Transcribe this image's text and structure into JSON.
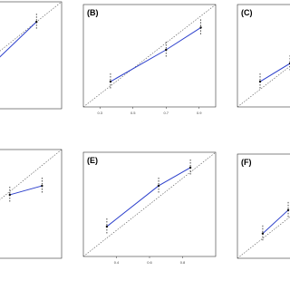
{
  "chart_data": [
    {
      "type": "line",
      "x": [
        0.6,
        0.85
      ],
      "values": [
        0.55,
        0.85
      ],
      "xlim": [
        0.2,
        1.0
      ],
      "ylim": [
        0.2,
        1.0
      ],
      "color": "#2b3fcc"
    },
    {
      "type": "line",
      "title": "(B)",
      "x": [
        0.364,
        0.7,
        0.91
      ],
      "values": [
        0.398,
        0.646,
        0.82
      ],
      "xlim": [
        0.2,
        1.0
      ],
      "ylim": [
        0.2,
        1.0
      ],
      "xticks": [
        0.3,
        0.5,
        0.7,
        0.9
      ],
      "color": "#2b3fcc"
    },
    {
      "type": "line",
      "title": "(C)",
      "x": [
        0.337,
        0.518
      ],
      "values": [
        0.398,
        0.54
      ],
      "xlim": [
        0.2,
        1.0
      ],
      "ylim": [
        0.2,
        1.0
      ],
      "color": "#2b3fcc"
    },
    {
      "type": "line",
      "x": [
        0.691,
        0.883
      ],
      "values": [
        0.667,
        0.733
      ],
      "xlim": [
        0.2,
        1.0
      ],
      "ylim": [
        0.2,
        1.0
      ],
      "color": "#2b3fcc"
    },
    {
      "type": "line",
      "title": "(E)",
      "x": [
        0.342,
        0.655,
        0.847
      ],
      "values": [
        0.43,
        0.743,
        0.882
      ],
      "xlim": [
        0.2,
        1.0
      ],
      "ylim": [
        0.2,
        1.0
      ],
      "xticks": [
        0.4,
        0.6,
        0.8
      ],
      "color": "#2b3fcc"
    },
    {
      "type": "line",
      "title": "(F)",
      "x": [
        0.353,
        0.507
      ],
      "values": [
        0.39,
        0.57
      ],
      "xlim": [
        0.2,
        1.0
      ],
      "ylim": [
        0.2,
        1.0
      ],
      "color": "#2b3fcc"
    }
  ]
}
